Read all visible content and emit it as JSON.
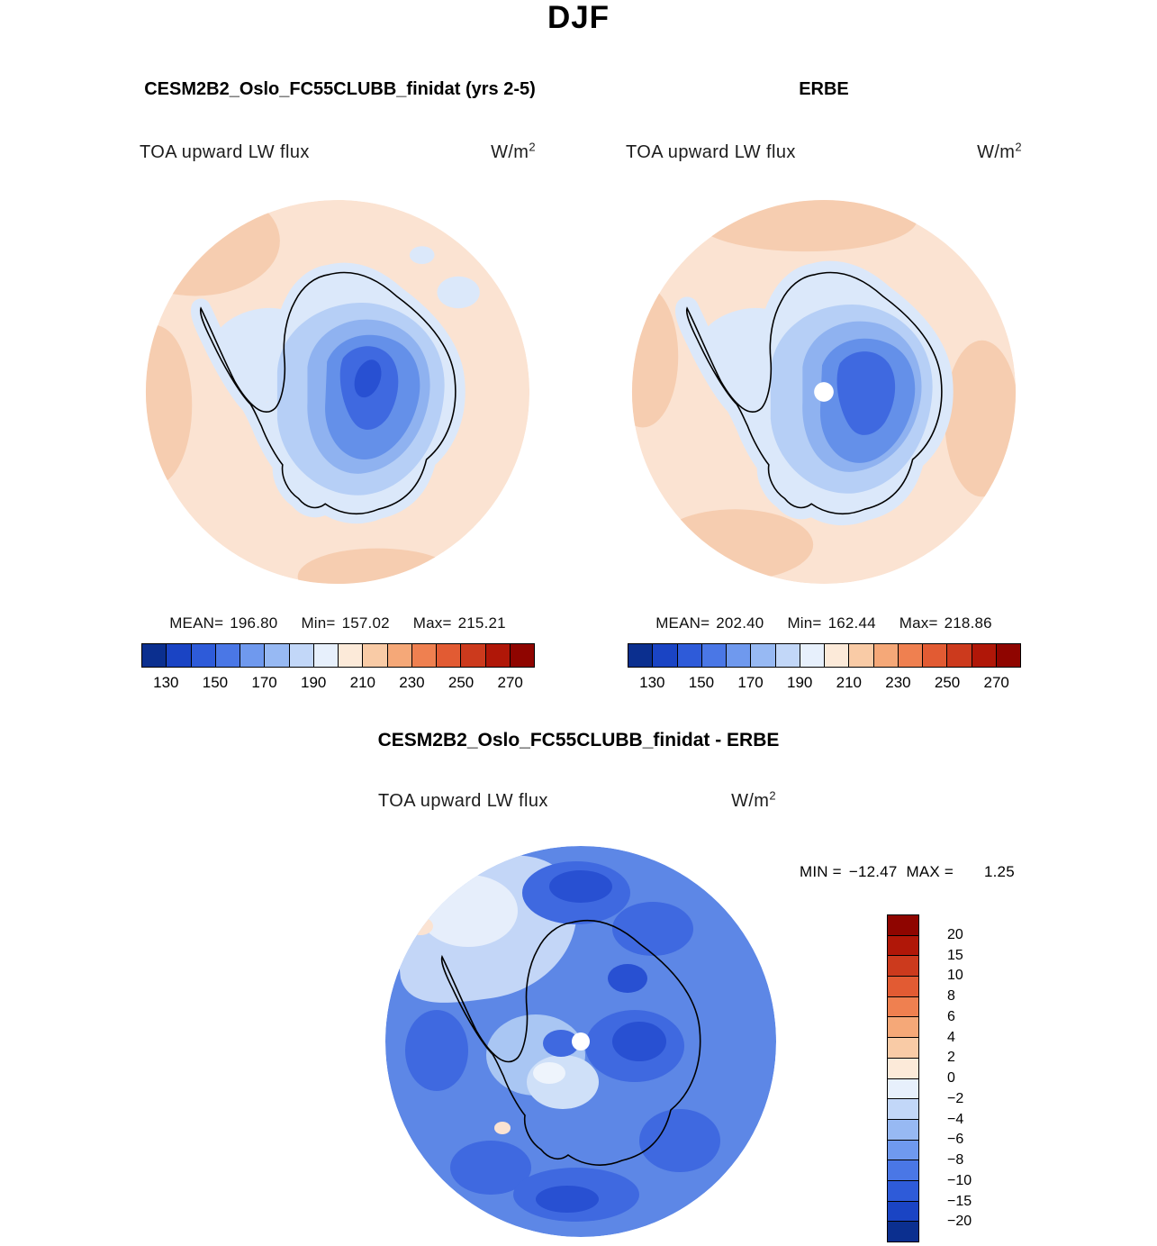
{
  "page": {
    "title": "DJF"
  },
  "panel_left": {
    "title": "CESM2B2_Oslo_FC55CLUBB_finidat (yrs 2-5)",
    "field_label": "TOA upward LW flux",
    "units_base": "W/m",
    "units_exp": "2",
    "stats": {
      "mean_label": "MEAN=",
      "mean": "196.80",
      "min_label": "Min=",
      "min": "157.02",
      "max_label": "Max=",
      "max": "215.21"
    },
    "colorbar": {
      "ticks": [
        "130",
        "150",
        "170",
        "190",
        "210",
        "230",
        "250",
        "270"
      ]
    }
  },
  "panel_right": {
    "title": "ERBE",
    "field_label": "TOA upward LW flux",
    "units_base": "W/m",
    "units_exp": "2",
    "stats": {
      "mean_label": "MEAN=",
      "mean": "202.40",
      "min_label": "Min=",
      "min": "162.44",
      "max_label": "Max=",
      "max": "218.86"
    },
    "colorbar": {
      "ticks": [
        "130",
        "150",
        "170",
        "190",
        "210",
        "230",
        "250",
        "270"
      ]
    }
  },
  "panel_diff": {
    "title": "CESM2B2_Oslo_FC55CLUBB_finidat - ERBE",
    "field_label": "TOA upward LW flux",
    "units_base": "W/m",
    "units_exp": "2",
    "stats": {
      "min_label": "MIN =",
      "min": "−12.47",
      "max_label": "MAX =",
      "max": "1.25"
    },
    "colorbar": {
      "ticks": [
        "20",
        "15",
        "10",
        "8",
        "6",
        "4",
        "2",
        "0",
        "−2",
        "−4",
        "−6",
        "−8",
        "−10",
        "−15",
        "−20"
      ]
    }
  },
  "palette": {
    "flux_colors": [
      "#0b2f8f",
      "#1a44c4",
      "#2e5bd9",
      "#4a77e6",
      "#6f99ee",
      "#97b9f3",
      "#c2d7f8",
      "#e7f0fc",
      "#fcead9",
      "#f9cba6",
      "#f5a878",
      "#ef8050",
      "#e25b33",
      "#cc3a1d",
      "#b01708",
      "#8f0500"
    ],
    "diff_colors": [
      "#8f0500",
      "#b01708",
      "#cc3a1d",
      "#e25b33",
      "#ef8050",
      "#f5a878",
      "#f9cba6",
      "#fcead9",
      "#e7f0fc",
      "#c2d7f8",
      "#97b9f3",
      "#6f99ee",
      "#4a77e6",
      "#2e5bd9",
      "#1a44c4",
      "#0b2f8f"
    ],
    "ocean": "#fbe3d2",
    "ocean_dark": "#f6cdb0",
    "ice_light": "#dbe8fa",
    "ice_mid": "#b6cff6",
    "ice_deep": "#6490e9",
    "ice_core": "#2850d2",
    "diff_base": "#5d87e6"
  },
  "chart_data": [
    {
      "type": "heatmap",
      "subtype": "south-polar-stereographic-map",
      "season": "DJF",
      "title": "CESM2B2_Oslo_FC55CLUBB_finidat (yrs 2-5)",
      "variable": "TOA upward LW flux",
      "units": "W/m^2",
      "mean": 196.8,
      "min": 157.02,
      "max": 215.21,
      "colorbar_ticks": [
        130,
        150,
        170,
        190,
        210,
        230,
        250,
        270
      ],
      "colorbar_range": [
        120,
        280
      ],
      "colorbar_segments": 16,
      "legend_position": "bottom"
    },
    {
      "type": "heatmap",
      "subtype": "south-polar-stereographic-map",
      "season": "DJF",
      "title": "ERBE",
      "variable": "TOA upward LW flux",
      "units": "W/m^2",
      "mean": 202.4,
      "min": 162.44,
      "max": 218.86,
      "colorbar_ticks": [
        130,
        150,
        170,
        190,
        210,
        230,
        250,
        270
      ],
      "colorbar_range": [
        120,
        280
      ],
      "colorbar_segments": 16,
      "legend_position": "bottom"
    },
    {
      "type": "heatmap",
      "subtype": "south-polar-stereographic-map",
      "season": "DJF",
      "title": "CESM2B2_Oslo_FC55CLUBB_finidat - ERBE",
      "variable": "TOA upward LW flux",
      "units": "W/m^2",
      "min": -12.47,
      "max": 1.25,
      "colorbar_ticks": [
        20,
        15,
        10,
        8,
        6,
        4,
        2,
        0,
        -2,
        -4,
        -6,
        -8,
        -10,
        -15,
        -20
      ],
      "colorbar_segments": 16,
      "legend_position": "right"
    }
  ]
}
